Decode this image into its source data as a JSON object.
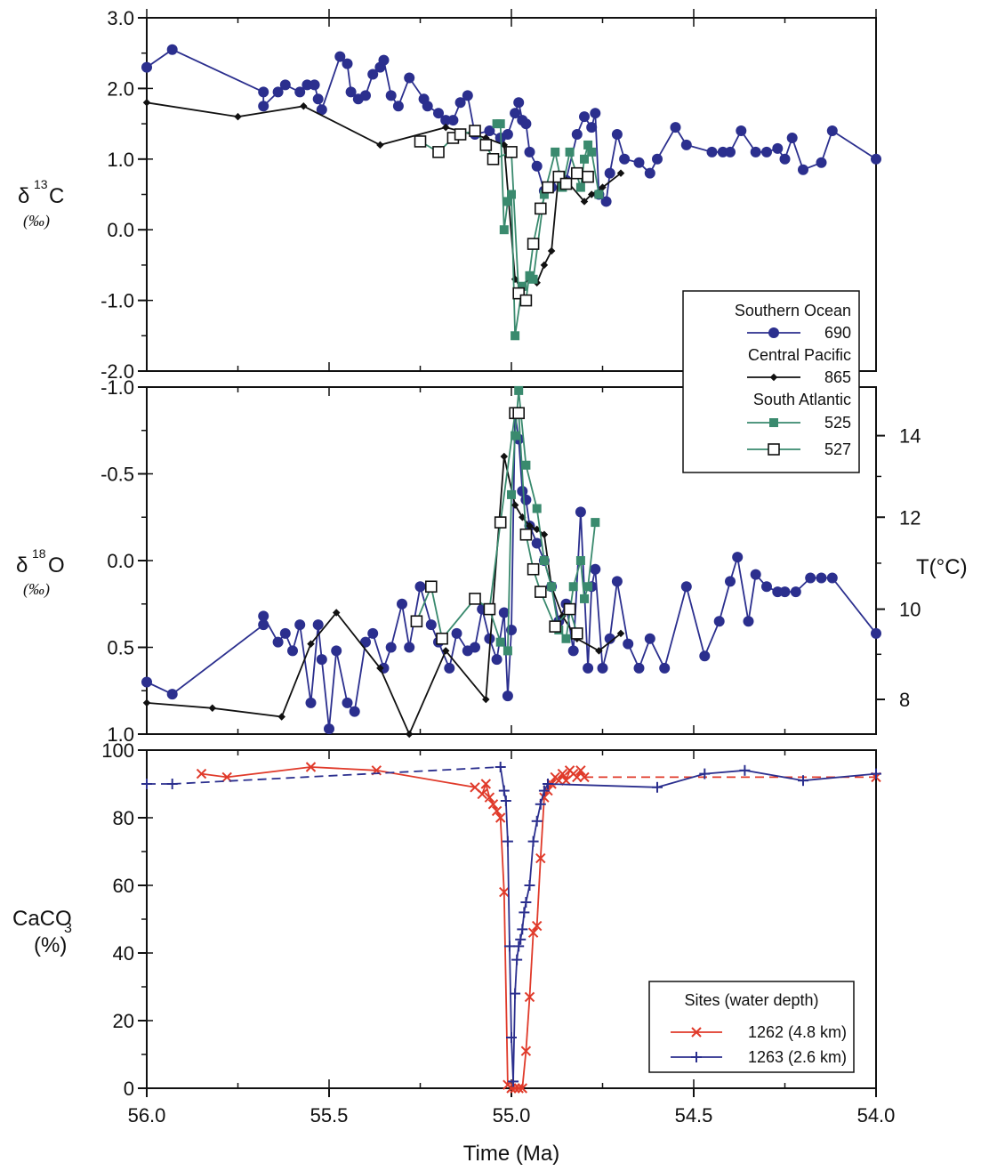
{
  "chart_data": [
    {
      "type": "line",
      "ylabel_main": "δ13C",
      "ylabel_sup": "13",
      "ylabel_sym": "δ",
      "ylabel_tail": "C",
      "yunit": "(‰)",
      "ylim": [
        -2.0,
        3.0
      ],
      "xlim": [
        56.0,
        54.0
      ],
      "yticks": [
        "3.0",
        "2.0",
        "1.0",
        "0.0",
        "-1.0",
        "-2.0"
      ],
      "ytick_values": [
        3.0,
        2.0,
        1.0,
        0.0,
        -1.0,
        -2.0
      ],
      "series": [
        {
          "name": "690",
          "color": "#2b2f8e",
          "marker": "circle",
          "x": [
            56.0,
            55.93,
            55.68,
            55.68,
            55.64,
            55.62,
            55.58,
            55.56,
            55.54,
            55.53,
            55.52,
            55.47,
            55.45,
            55.44,
            55.42,
            55.4,
            55.38,
            55.36,
            55.35,
            55.33,
            55.31,
            55.28,
            55.24,
            55.23,
            55.2,
            55.18,
            55.16,
            55.14,
            55.12,
            55.1,
            55.06,
            55.03,
            55.01,
            54.99,
            54.98,
            54.97,
            54.96,
            54.95,
            54.93,
            54.91,
            54.89,
            54.87,
            54.85,
            54.82,
            54.8,
            54.78,
            54.77,
            54.76,
            54.74,
            54.73,
            54.71,
            54.69,
            54.65,
            54.62,
            54.6,
            54.55,
            54.52,
            54.45,
            54.42,
            54.4,
            54.37,
            54.33,
            54.3,
            54.27,
            54.25,
            54.23,
            54.2,
            54.15,
            54.12,
            54.0
          ],
          "y": [
            2.3,
            2.55,
            1.95,
            1.75,
            1.95,
            2.05,
            1.95,
            2.05,
            2.05,
            1.85,
            1.7,
            2.45,
            2.35,
            1.95,
            1.85,
            1.9,
            2.2,
            2.3,
            2.4,
            1.9,
            1.75,
            2.15,
            1.85,
            1.75,
            1.65,
            1.55,
            1.55,
            1.8,
            1.9,
            1.35,
            1.4,
            1.3,
            1.35,
            1.65,
            1.8,
            1.55,
            1.5,
            1.1,
            0.9,
            0.55,
            0.6,
            0.75,
            0.7,
            1.35,
            1.6,
            1.45,
            1.65,
            0.5,
            0.4,
            0.8,
            1.35,
            1.0,
            0.95,
            0.8,
            1.0,
            1.45,
            1.2,
            1.1,
            1.1,
            1.1,
            1.4,
            1.1,
            1.1,
            1.15,
            1.0,
            1.3,
            0.85,
            0.95,
            1.4,
            1.0
          ]
        },
        {
          "name": "865",
          "color": "#111111",
          "marker": "diamond",
          "x": [
            56.0,
            55.75,
            55.57,
            55.36,
            55.18,
            55.07,
            55.02,
            54.99,
            54.97,
            54.95,
            54.93,
            54.91,
            54.89,
            54.87,
            54.85,
            54.8,
            54.78,
            54.75,
            54.7
          ],
          "y": [
            1.8,
            1.6,
            1.75,
            1.2,
            1.45,
            1.3,
            1.2,
            -0.7,
            -0.85,
            -0.65,
            -0.75,
            -0.5,
            -0.3,
            0.8,
            0.7,
            0.4,
            0.5,
            0.6,
            0.8
          ]
        }
      ],
      "south_atlantic": [
        {
          "name": "525",
          "color": "#3a8a6e",
          "marker": "square",
          "x": [
            55.04,
            55.03,
            55.02,
            55.01,
            55.0,
            54.99,
            54.97,
            54.95,
            54.94,
            54.91,
            54.88,
            54.86,
            54.84,
            54.81,
            54.8,
            54.79,
            54.78,
            54.76
          ],
          "y": [
            1.5,
            1.5,
            0.0,
            0.4,
            0.5,
            -1.5,
            -0.8,
            -0.65,
            -0.7,
            0.5,
            1.1,
            0.6,
            1.1,
            0.6,
            1.0,
            1.2,
            1.1,
            0.5
          ]
        },
        {
          "name": "527",
          "color": "#111111",
          "marker": "open-square",
          "x": [
            55.25,
            55.2,
            55.16,
            55.14,
            55.1,
            55.07,
            55.05,
            55.0,
            54.98,
            54.96,
            54.94,
            54.92,
            54.9,
            54.87,
            54.85,
            54.82,
            54.79
          ],
          "y": [
            1.25,
            1.1,
            1.3,
            1.35,
            1.4,
            1.2,
            1.0,
            1.1,
            -0.9,
            -1.0,
            -0.2,
            0.3,
            0.6,
            0.75,
            0.65,
            0.8,
            0.75
          ]
        }
      ]
    },
    {
      "type": "line",
      "ylabel_sym": "δ",
      "ylabel_sup": "18",
      "ylabel_tail": "O",
      "yunit": "(‰)",
      "ylim": [
        -1.0,
        1.0
      ],
      "inverted": true,
      "xlim": [
        56.0,
        54.0
      ],
      "yticks": [
        "-1.0",
        "-0.5",
        "0.0",
        "0.5",
        "1.0"
      ],
      "ytick_values": [
        -1.0,
        -0.5,
        0.0,
        0.5,
        1.0
      ],
      "right_axis_label": "T(°C)",
      "right_ticks": [
        "14",
        "12",
        "10",
        "8"
      ],
      "right_tick_values": [
        -0.72,
        -0.25,
        0.28,
        0.8
      ],
      "series": [
        {
          "name": "690",
          "color": "#2b2f8e",
          "marker": "circle",
          "x": [
            56.0,
            55.93,
            55.68,
            55.68,
            55.64,
            55.62,
            55.6,
            55.58,
            55.55,
            55.53,
            55.52,
            55.5,
            55.48,
            55.45,
            55.43,
            55.4,
            55.38,
            55.35,
            55.33,
            55.3,
            55.28,
            55.25,
            55.22,
            55.2,
            55.17,
            55.15,
            55.12,
            55.1,
            55.08,
            55.06,
            55.04,
            55.02,
            55.01,
            55.0,
            54.99,
            54.98,
            54.97,
            54.96,
            54.95,
            54.93,
            54.91,
            54.89,
            54.87,
            54.85,
            54.83,
            54.81,
            54.79,
            54.78,
            54.77,
            54.75,
            54.73,
            54.71,
            54.68,
            54.65,
            54.62,
            54.58,
            54.52,
            54.47,
            54.43,
            54.4,
            54.38,
            54.35,
            54.33,
            54.3,
            54.27,
            54.25,
            54.22,
            54.18,
            54.15,
            54.12,
            54.0
          ],
          "y": [
            0.7,
            0.77,
            0.37,
            0.32,
            0.47,
            0.42,
            0.52,
            0.37,
            0.82,
            0.37,
            0.57,
            0.97,
            0.52,
            0.82,
            0.87,
            0.47,
            0.42,
            0.62,
            0.5,
            0.25,
            0.5,
            0.15,
            0.37,
            0.47,
            0.62,
            0.42,
            0.52,
            0.5,
            0.28,
            0.45,
            0.57,
            0.3,
            0.78,
            0.4,
            -0.85,
            -0.7,
            -0.4,
            -0.35,
            -0.2,
            -0.1,
            0.0,
            0.15,
            0.35,
            0.25,
            0.52,
            -0.28,
            0.62,
            0.15,
            0.05,
            0.62,
            0.45,
            0.12,
            0.48,
            0.62,
            0.45,
            0.62,
            0.15,
            0.55,
            0.35,
            0.12,
            -0.02,
            0.35,
            0.08,
            0.15,
            0.18,
            0.18,
            0.18,
            0.1,
            0.1,
            0.1,
            0.42
          ]
        },
        {
          "name": "865",
          "color": "#111111",
          "marker": "diamond",
          "x": [
            56.0,
            55.82,
            55.63,
            55.55,
            55.48,
            55.36,
            55.28,
            55.18,
            55.07,
            55.02,
            54.99,
            54.97,
            54.95,
            54.93,
            54.91,
            54.89,
            54.86,
            54.82,
            54.76,
            54.7
          ],
          "y": [
            0.82,
            0.85,
            0.9,
            0.48,
            0.3,
            0.62,
            1.0,
            0.52,
            0.8,
            -0.6,
            -0.32,
            -0.25,
            -0.2,
            -0.18,
            -0.15,
            0.15,
            0.32,
            0.45,
            0.52,
            0.42
          ]
        }
      ],
      "south_atlantic": [
        {
          "name": "525",
          "color": "#3a8a6e",
          "marker": "square",
          "x": [
            55.06,
            55.03,
            55.01,
            55.0,
            54.99,
            54.98,
            54.96,
            54.93,
            54.91,
            54.89,
            54.87,
            54.85,
            54.83,
            54.81,
            54.8,
            54.79,
            54.77
          ],
          "y": [
            0.28,
            0.47,
            0.52,
            -0.38,
            -0.72,
            -0.98,
            -0.55,
            -0.3,
            0.0,
            0.15,
            0.4,
            0.45,
            0.15,
            0.0,
            0.22,
            0.15,
            -0.22
          ]
        },
        {
          "name": "527",
          "color": "#111111",
          "marker": "open-square",
          "x": [
            55.26,
            55.22,
            55.19,
            55.1,
            55.06,
            55.03,
            54.99,
            54.98,
            54.96,
            54.94,
            54.92,
            54.88,
            54.84,
            54.82
          ],
          "y": [
            0.35,
            0.15,
            0.45,
            0.22,
            0.28,
            -0.22,
            -0.85,
            -0.85,
            -0.15,
            0.05,
            0.18,
            0.38,
            0.28,
            0.42
          ]
        }
      ]
    },
    {
      "type": "line",
      "ylabel_main": "CaCO",
      "ylabel_sub": "3",
      "yunit": "(%)",
      "ylim": [
        0,
        100
      ],
      "xlim": [
        56.0,
        54.0
      ],
      "yticks": [
        "100",
        "80",
        "60",
        "40",
        "20",
        "0"
      ],
      "ytick_values": [
        100,
        80,
        60,
        40,
        20,
        0
      ],
      "xlabel": "Time (Ma)",
      "xticks": [
        "56.0",
        "55.5",
        "55.0",
        "54.5",
        "54.0"
      ],
      "xtick_values": [
        56.0,
        55.5,
        55.0,
        54.5,
        54.0
      ],
      "legend_title": "Sites (water depth)",
      "series": [
        {
          "name": "1262 (4.8 km)",
          "color": "#e03a2a",
          "marker": "x",
          "x": [
            55.85,
            55.78,
            55.55,
            55.37,
            55.1,
            55.08,
            55.07,
            55.06,
            55.05,
            55.04,
            55.03,
            55.02,
            55.01,
            55.0,
            54.99,
            54.98,
            54.97,
            54.96,
            54.95,
            54.94,
            54.93,
            54.92,
            54.91,
            54.9,
            54.89,
            54.88,
            54.87,
            54.86,
            54.85,
            54.84,
            54.83,
            54.82,
            54.81,
            54.8,
            54.0
          ],
          "y": [
            93,
            92,
            95,
            94,
            89,
            87,
            90,
            86,
            84,
            82,
            80,
            58,
            1,
            0,
            0,
            0,
            0,
            11,
            27,
            46,
            48,
            68,
            86,
            88,
            90,
            92,
            91,
            93,
            91,
            94,
            93,
            92,
            94,
            92,
            92
          ]
        },
        {
          "name": "1263 (2.6 km)",
          "color": "#2b2f8e",
          "marker": "plus",
          "x": [
            56.0,
            55.93,
            55.03,
            55.02,
            55.015,
            55.01,
            55.005,
            55.0,
            54.995,
            54.99,
            54.985,
            54.98,
            54.975,
            54.97,
            54.965,
            54.96,
            54.95,
            54.94,
            54.93,
            54.92,
            54.91,
            54.9,
            54.6,
            54.47,
            54.36,
            54.2,
            54.0
          ],
          "y": [
            90,
            90,
            95,
            88,
            85,
            73,
            42,
            15,
            2,
            28,
            38,
            42,
            44,
            47,
            52,
            55,
            60,
            73,
            79,
            84,
            88,
            90,
            89,
            93,
            94,
            91,
            93
          ]
        }
      ]
    }
  ],
  "legend_top": {
    "groups": [
      "Southern Ocean",
      "Central Pacific",
      "South Atlantic"
    ],
    "entries": [
      "690",
      "865",
      "525",
      "527"
    ]
  },
  "colors": {
    "blue": "#2b2f8e",
    "black": "#111111",
    "green": "#3a8a6e",
    "red": "#e03a2a"
  }
}
